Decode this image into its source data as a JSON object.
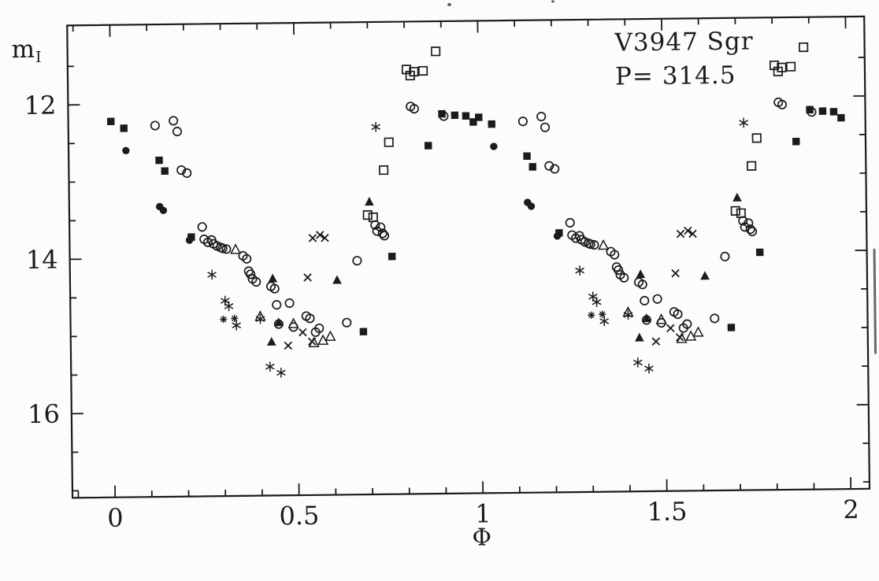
{
  "title": {
    "star": "V3947 Sgr",
    "period": "P= 314.5"
  },
  "labels": {
    "y_main": "m",
    "y_sub": "I",
    "x": "Φ"
  },
  "chart_data": {
    "type": "scatter",
    "title": "V3947 Sgr",
    "subtitle": "P= 314.5",
    "xlabel": "Φ",
    "ylabel": "m_I",
    "y_axis_inverted": true,
    "phase_fold_duplicated": true,
    "note": "Phase-folded I-band light curve; each point is plotted at phase and phase+1",
    "x_axis": {
      "lim": [
        -0.118,
        2.053
      ],
      "major_ticks": [
        0,
        0.5,
        1,
        1.5,
        2
      ],
      "major_tick_labels": [
        "0",
        "0.5",
        "1",
        "1.5",
        "2"
      ],
      "minor_step": 0.1
    },
    "y_axis": {
      "lim": [
        10.96,
        17.1
      ],
      "major_ticks": [
        12,
        14,
        16
      ],
      "major_tick_labels": [
        "12",
        "14",
        "16"
      ],
      "minor_step": 0.5
    },
    "series": [
      {
        "name": "open-circle",
        "marker": "open-circle",
        "points": [
          [
            0.12,
            12.28
          ],
          [
            0.17,
            12.22
          ],
          [
            0.18,
            12.36
          ],
          [
            0.19,
            12.86
          ],
          [
            0.205,
            12.9
          ],
          [
            0.245,
            13.6
          ],
          [
            0.25,
            13.76
          ],
          [
            0.26,
            13.8
          ],
          [
            0.27,
            13.77
          ],
          [
            0.275,
            13.82
          ],
          [
            0.285,
            13.85
          ],
          [
            0.295,
            13.87
          ],
          [
            0.3,
            13.88
          ],
          [
            0.31,
            13.89
          ],
          [
            0.355,
            13.98
          ],
          [
            0.365,
            14.02
          ],
          [
            0.37,
            14.18
          ],
          [
            0.375,
            14.22
          ],
          [
            0.38,
            14.28
          ],
          [
            0.39,
            14.32
          ],
          [
            0.43,
            14.38
          ],
          [
            0.44,
            14.41
          ],
          [
            0.445,
            14.62
          ],
          [
            0.45,
            14.87
          ],
          [
            0.48,
            14.6
          ],
          [
            0.49,
            14.91
          ],
          [
            0.525,
            14.77
          ],
          [
            0.535,
            14.8
          ],
          [
            0.55,
            14.98
          ],
          [
            0.56,
            14.93
          ],
          [
            0.635,
            14.86
          ],
          [
            0.665,
            14.06
          ],
          [
            0.715,
            13.6
          ],
          [
            0.72,
            13.68
          ],
          [
            0.73,
            13.63
          ],
          [
            0.735,
            13.71
          ],
          [
            0.74,
            13.74
          ],
          [
            0.815,
            12.07
          ],
          [
            0.825,
            12.1
          ],
          [
            0.905,
            12.2
          ]
        ]
      },
      {
        "name": "filled-square",
        "marker": "filled-square",
        "points": [
          [
            0.0,
            12.22
          ],
          [
            0.035,
            12.31
          ],
          [
            0.13,
            12.73
          ],
          [
            0.145,
            12.87
          ],
          [
            0.215,
            13.73
          ],
          [
            0.68,
            14.98
          ],
          [
            0.76,
            14.01
          ],
          [
            0.862,
            12.58
          ],
          [
            0.9,
            12.17
          ],
          [
            0.935,
            12.19
          ],
          [
            0.965,
            12.2
          ],
          [
            0.985,
            12.28
          ]
        ]
      },
      {
        "name": "filled-circle",
        "marker": "filled-circle",
        "points": [
          [
            0.04,
            12.6
          ],
          [
            0.13,
            13.33
          ],
          [
            0.14,
            13.38
          ],
          [
            0.21,
            13.77
          ]
        ]
      },
      {
        "name": "open-square",
        "marker": "open-square",
        "points": [
          [
            0.695,
            13.47
          ],
          [
            0.71,
            13.5
          ],
          [
            0.74,
            12.89
          ],
          [
            0.755,
            12.53
          ],
          [
            0.805,
            11.59
          ],
          [
            0.815,
            11.67
          ],
          [
            0.825,
            11.62
          ],
          [
            0.85,
            11.61
          ],
          [
            0.885,
            11.36
          ]
        ]
      },
      {
        "name": "asterisk",
        "marker": "asterisk",
        "points": [
          [
            0.27,
            14.22
          ],
          [
            0.305,
            14.56
          ],
          [
            0.315,
            14.63
          ],
          [
            0.335,
            14.88
          ],
          [
            0.4,
            14.8
          ],
          [
            0.425,
            15.42
          ],
          [
            0.455,
            15.5
          ],
          [
            0.72,
            12.33
          ]
        ]
      },
      {
        "name": "four-point-star",
        "marker": "four-point-star",
        "points": [
          [
            0.3,
            14.8
          ],
          [
            0.33,
            14.79
          ]
        ]
      },
      {
        "name": "cross",
        "marker": "cross",
        "points": [
          [
            0.475,
            15.15
          ],
          [
            0.515,
            14.98
          ],
          [
            0.53,
            14.27
          ],
          [
            0.54,
            15.1
          ],
          [
            0.545,
            13.76
          ],
          [
            0.565,
            13.72
          ],
          [
            0.578,
            13.76
          ]
        ]
      },
      {
        "name": "open-triangle",
        "marker": "open-triangle",
        "points": [
          [
            0.335,
            13.9
          ],
          [
            0.4,
            14.77
          ],
          [
            0.49,
            14.87
          ],
          [
            0.545,
            15.12
          ],
          [
            0.57,
            15.09
          ],
          [
            0.59,
            15.04
          ]
        ]
      },
      {
        "name": "filled-triangle",
        "marker": "filled-triangle",
        "points": [
          [
            0.43,
            15.1
          ],
          [
            0.435,
            14.28
          ],
          [
            0.45,
            14.85
          ],
          [
            0.61,
            14.31
          ],
          [
            0.7,
            13.3
          ]
        ]
      }
    ]
  }
}
